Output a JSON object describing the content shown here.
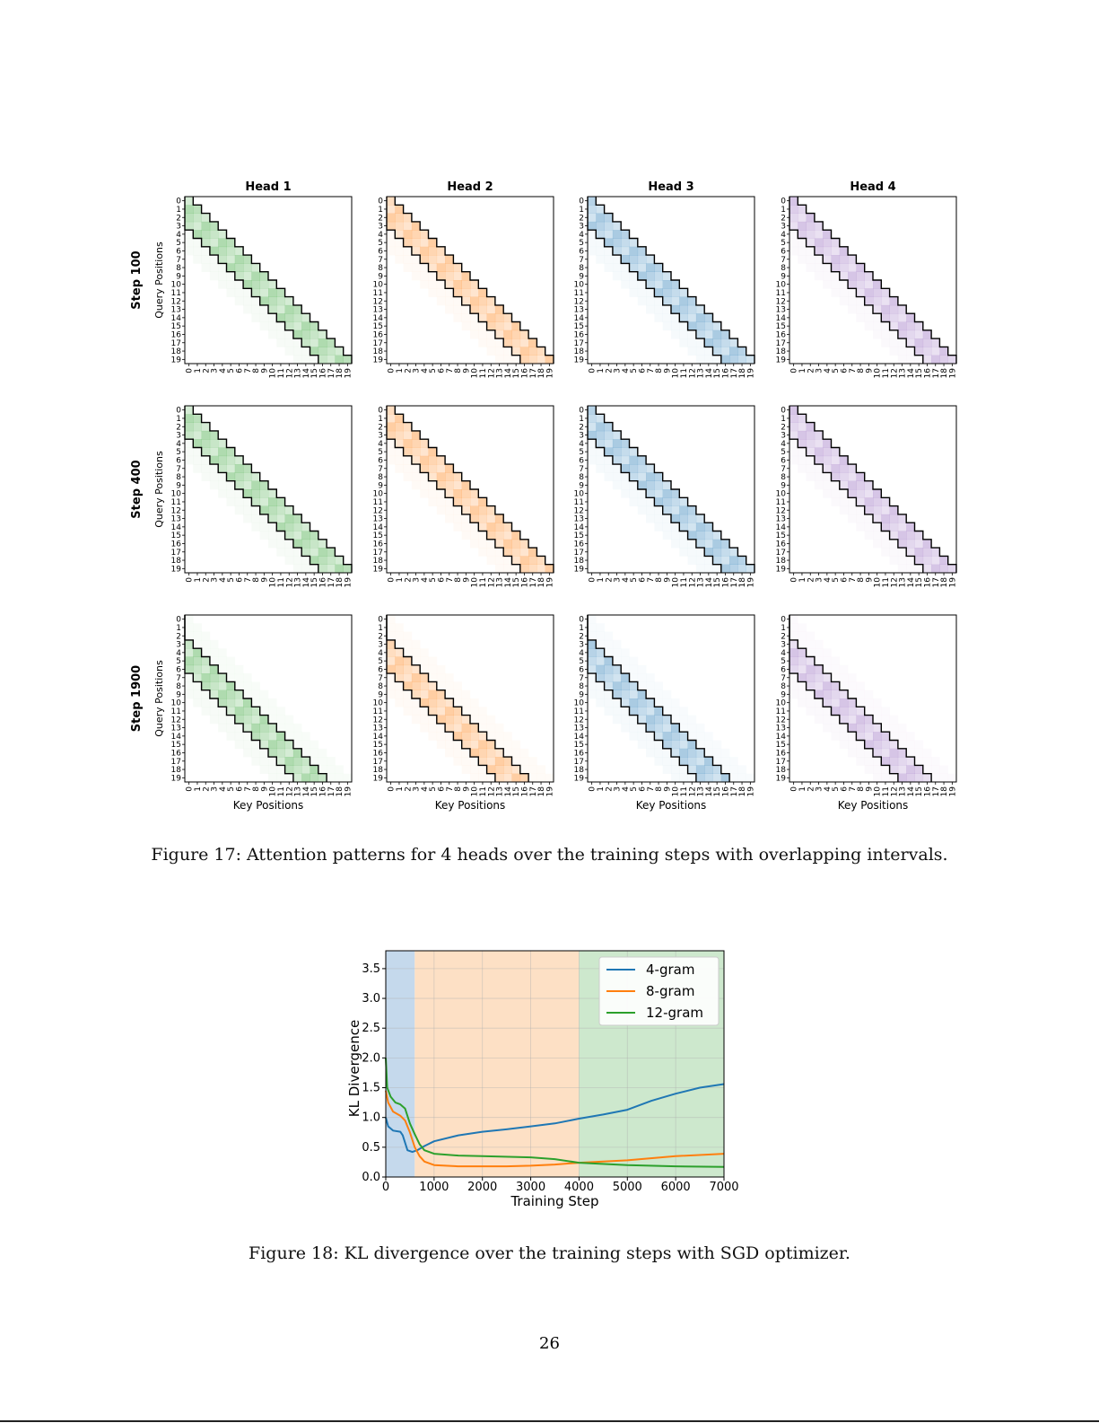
{
  "figure17": {
    "heads": [
      "Head 1",
      "Head 2",
      "Head 3",
      "Head 4"
    ],
    "steps": [
      "Step 100",
      "Step 400",
      "Step 1900"
    ],
    "y_label": "Query Positions",
    "x_label": "Key Positions",
    "positions": [
      0,
      1,
      2,
      3,
      4,
      5,
      6,
      7,
      8,
      9,
      10,
      11,
      12,
      13,
      14,
      15,
      16,
      17,
      18,
      19
    ],
    "head_colors": [
      "#2ca02c",
      "#ff7f0e",
      "#1f77b4",
      "#9467bd"
    ],
    "caption": "Figure 17: Attention patterns for 4 heads over the training steps with overlapping intervals."
  },
  "chart_data": {
    "type": "line",
    "title": "",
    "xlabel": "Training Step",
    "ylabel": "KL Divergence",
    "xlim": [
      0,
      7000
    ],
    "ylim": [
      0,
      3.8
    ],
    "xticks": [
      0,
      1000,
      2000,
      3000,
      4000,
      5000,
      6000,
      7000
    ],
    "yticks": [
      0.0,
      0.5,
      1.0,
      1.5,
      2.0,
      2.5,
      3.0,
      3.5
    ],
    "xtick_labels": [
      "0",
      "1000",
      "2000",
      "3000",
      "4000",
      "5000",
      "6000",
      "7000"
    ],
    "ytick_labels": [
      "0.0",
      "0.5",
      "1.0",
      "1.5",
      "2.0",
      "2.5",
      "3.0",
      "3.5"
    ],
    "grid": true,
    "legend_position": "top-right",
    "shaded_regions": [
      {
        "from": 0,
        "to": 600,
        "color": "#c5d9ec"
      },
      {
        "from": 600,
        "to": 4000,
        "color": "#fde0c5"
      },
      {
        "from": 4000,
        "to": 7000,
        "color": "#cde8cd"
      }
    ],
    "series": [
      {
        "name": "4-gram",
        "color": "#1f77b4",
        "points": [
          [
            0,
            1.0
          ],
          [
            50,
            0.85
          ],
          [
            150,
            0.78
          ],
          [
            300,
            0.76
          ],
          [
            350,
            0.7
          ],
          [
            450,
            0.45
          ],
          [
            550,
            0.42
          ],
          [
            650,
            0.45
          ],
          [
            800,
            0.52
          ],
          [
            1000,
            0.6
          ],
          [
            1500,
            0.7
          ],
          [
            2000,
            0.76
          ],
          [
            2500,
            0.8
          ],
          [
            3000,
            0.85
          ],
          [
            3500,
            0.9
          ],
          [
            4000,
            0.98
          ],
          [
            4500,
            1.05
          ],
          [
            5000,
            1.13
          ],
          [
            5500,
            1.28
          ],
          [
            6000,
            1.4
          ],
          [
            6500,
            1.5
          ],
          [
            7000,
            1.56
          ]
        ]
      },
      {
        "name": "8-gram",
        "color": "#ff7f0e",
        "points": [
          [
            0,
            1.45
          ],
          [
            50,
            1.25
          ],
          [
            150,
            1.1
          ],
          [
            300,
            1.03
          ],
          [
            400,
            0.95
          ],
          [
            500,
            0.75
          ],
          [
            600,
            0.5
          ],
          [
            700,
            0.35
          ],
          [
            800,
            0.26
          ],
          [
            1000,
            0.2
          ],
          [
            1500,
            0.18
          ],
          [
            2000,
            0.18
          ],
          [
            2500,
            0.18
          ],
          [
            3000,
            0.19
          ],
          [
            3500,
            0.21
          ],
          [
            4000,
            0.24
          ],
          [
            5000,
            0.28
          ],
          [
            6000,
            0.35
          ],
          [
            7000,
            0.39
          ]
        ]
      },
      {
        "name": "12-gram",
        "color": "#2ca02c",
        "points": [
          [
            0,
            2.0
          ],
          [
            30,
            1.5
          ],
          [
            100,
            1.35
          ],
          [
            200,
            1.25
          ],
          [
            300,
            1.22
          ],
          [
            400,
            1.15
          ],
          [
            500,
            0.9
          ],
          [
            600,
            0.72
          ],
          [
            700,
            0.55
          ],
          [
            800,
            0.45
          ],
          [
            1000,
            0.39
          ],
          [
            1500,
            0.36
          ],
          [
            2000,
            0.35
          ],
          [
            3000,
            0.33
          ],
          [
            3500,
            0.3
          ],
          [
            4000,
            0.24
          ],
          [
            5000,
            0.2
          ],
          [
            6000,
            0.18
          ],
          [
            7000,
            0.17
          ]
        ]
      }
    ]
  },
  "figure18": {
    "caption": "Figure 18: KL divergence over the training steps with SGD optimizer."
  },
  "page_number": "26"
}
